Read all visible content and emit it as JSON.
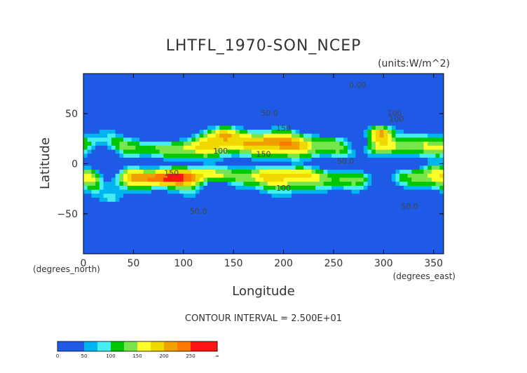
{
  "chart_data": {
    "type": "heatmap",
    "title": "LHTFL_1970-SON_NCEP",
    "units_label": "(units:W/m^2)",
    "xlabel": "Longitude",
    "ylabel": "Latitude",
    "x_unit_note": "(degrees_north)",
    "x_unit_note_right": "(degrees_east)",
    "xlim": [
      0,
      360
    ],
    "ylim": [
      -90,
      90
    ],
    "x_ticks": [
      0,
      50,
      100,
      150,
      200,
      250,
      300,
      350
    ],
    "y_ticks": [
      -50,
      0,
      50
    ],
    "contour_interval_text": "CONTOUR INTERVAL = 2.500E+01",
    "contour_labels": [
      {
        "text": "0.00",
        "lon": 274,
        "lat": 76
      },
      {
        "text": "50.0",
        "lon": 186,
        "lat": 48
      },
      {
        "text": "100",
        "lon": 311,
        "lat": 48
      },
      {
        "text": "150",
        "lon": 200,
        "lat": 33
      },
      {
        "text": "100",
        "lon": 313,
        "lat": 42
      },
      {
        "text": "100",
        "lon": 137,
        "lat": 10
      },
      {
        "text": "150",
        "lon": 180,
        "lat": 7
      },
      {
        "text": "50.0",
        "lon": 262,
        "lat": 0
      },
      {
        "text": "150",
        "lon": 88,
        "lat": -12
      },
      {
        "text": "100",
        "lon": 200,
        "lat": -27
      },
      {
        "text": "50.0",
        "lon": 115,
        "lat": -50
      },
      {
        "text": "50.0",
        "lon": 326,
        "lat": -45
      }
    ],
    "levels": [
      0,
      25,
      50,
      75,
      100,
      125,
      150,
      175,
      200,
      225,
      250,
      275
    ],
    "level_colors": [
      "#1e5ae6",
      "#1e5ae6",
      "#00b4f0",
      "#44eef0",
      "#00c800",
      "#78e64a",
      "#ffff2a",
      "#f0d800",
      "#f0a000",
      "#ff7800",
      "#ff1414",
      "#ff1414"
    ],
    "colorbar": {
      "tick_labels": [
        "0",
        "50",
        "100",
        "150",
        "200",
        "250",
        "∞"
      ],
      "colors": [
        "#1e5ae6",
        "#1e5ae6",
        "#00b4f0",
        "#44eef0",
        "#00c800",
        "#78e64a",
        "#ffff2a",
        "#f0d800",
        "#f0a000",
        "#ff7800",
        "#ff1414",
        "#ff1414"
      ]
    }
  }
}
